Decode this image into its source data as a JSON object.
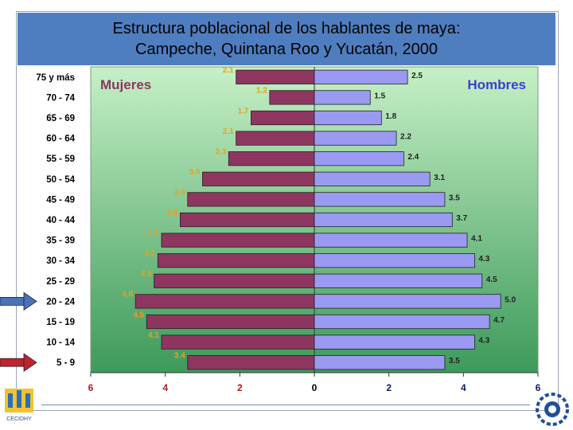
{
  "title_line1": "Estructura poblacional de los hablantes de maya:",
  "title_line2": "Campeche, Quintana Roo y Yucatán, 2000",
  "logo_text": "CECIDHY",
  "chart_data": {
    "type": "bar",
    "orientation": "horizontal",
    "subtype": "population-pyramid",
    "categories": [
      "75 y más",
      "70 - 74",
      "65 - 69",
      "60 - 64",
      "55 - 59",
      "50 - 54",
      "45 - 49",
      "40 - 44",
      "35 - 39",
      "30 - 34",
      "25 - 29",
      "20 - 24",
      "15 - 19",
      "10 - 14",
      "5 - 9"
    ],
    "series": [
      {
        "name": "Mujeres",
        "color": "#8e3660",
        "side": "left",
        "values": [
          2.1,
          1.2,
          1.7,
          2.1,
          2.3,
          3.0,
          3.4,
          3.6,
          4.1,
          4.2,
          4.3,
          4.8,
          4.5,
          4.1,
          3.4
        ],
        "labels": [
          "2.1",
          "1.2",
          "1.7",
          "2.1",
          "2.3",
          "3.0",
          "3.4",
          "3.6",
          "4.1",
          "4.2",
          "4.3",
          "4.8",
          "4.5",
          "4.1",
          "3.4"
        ]
      },
      {
        "name": "Hombres",
        "color": "#9a9af2",
        "side": "right",
        "values": [
          2.5,
          1.5,
          1.8,
          2.2,
          2.4,
          3.1,
          3.5,
          3.7,
          4.1,
          4.3,
          4.5,
          5.0,
          4.7,
          4.3,
          3.5
        ],
        "labels": [
          "2.5",
          "1.5",
          "1.8",
          "2.2",
          "2.4",
          "3.1",
          "3.5",
          "3.7",
          "4.1",
          "4.3",
          "4.5",
          "5.0",
          "4.7",
          "4.3",
          "3.5"
        ]
      }
    ],
    "xlim": [
      -6,
      6
    ],
    "xticks": [
      -6,
      -4,
      -2,
      0,
      2,
      4,
      6
    ],
    "xtick_labels": [
      "6",
      "4",
      "2",
      "0",
      "2",
      "4",
      "6"
    ],
    "background": {
      "top": "#c6f0c6",
      "bottom": "#3d9a5a"
    },
    "label_colors": {
      "Mujeres": "#8e3660",
      "Hombres": "#3a40d0"
    },
    "markers": [
      {
        "category": "20 - 24",
        "color": "#4a73b5"
      },
      {
        "category": "5 - 9",
        "color": "#c0232b"
      }
    ]
  }
}
